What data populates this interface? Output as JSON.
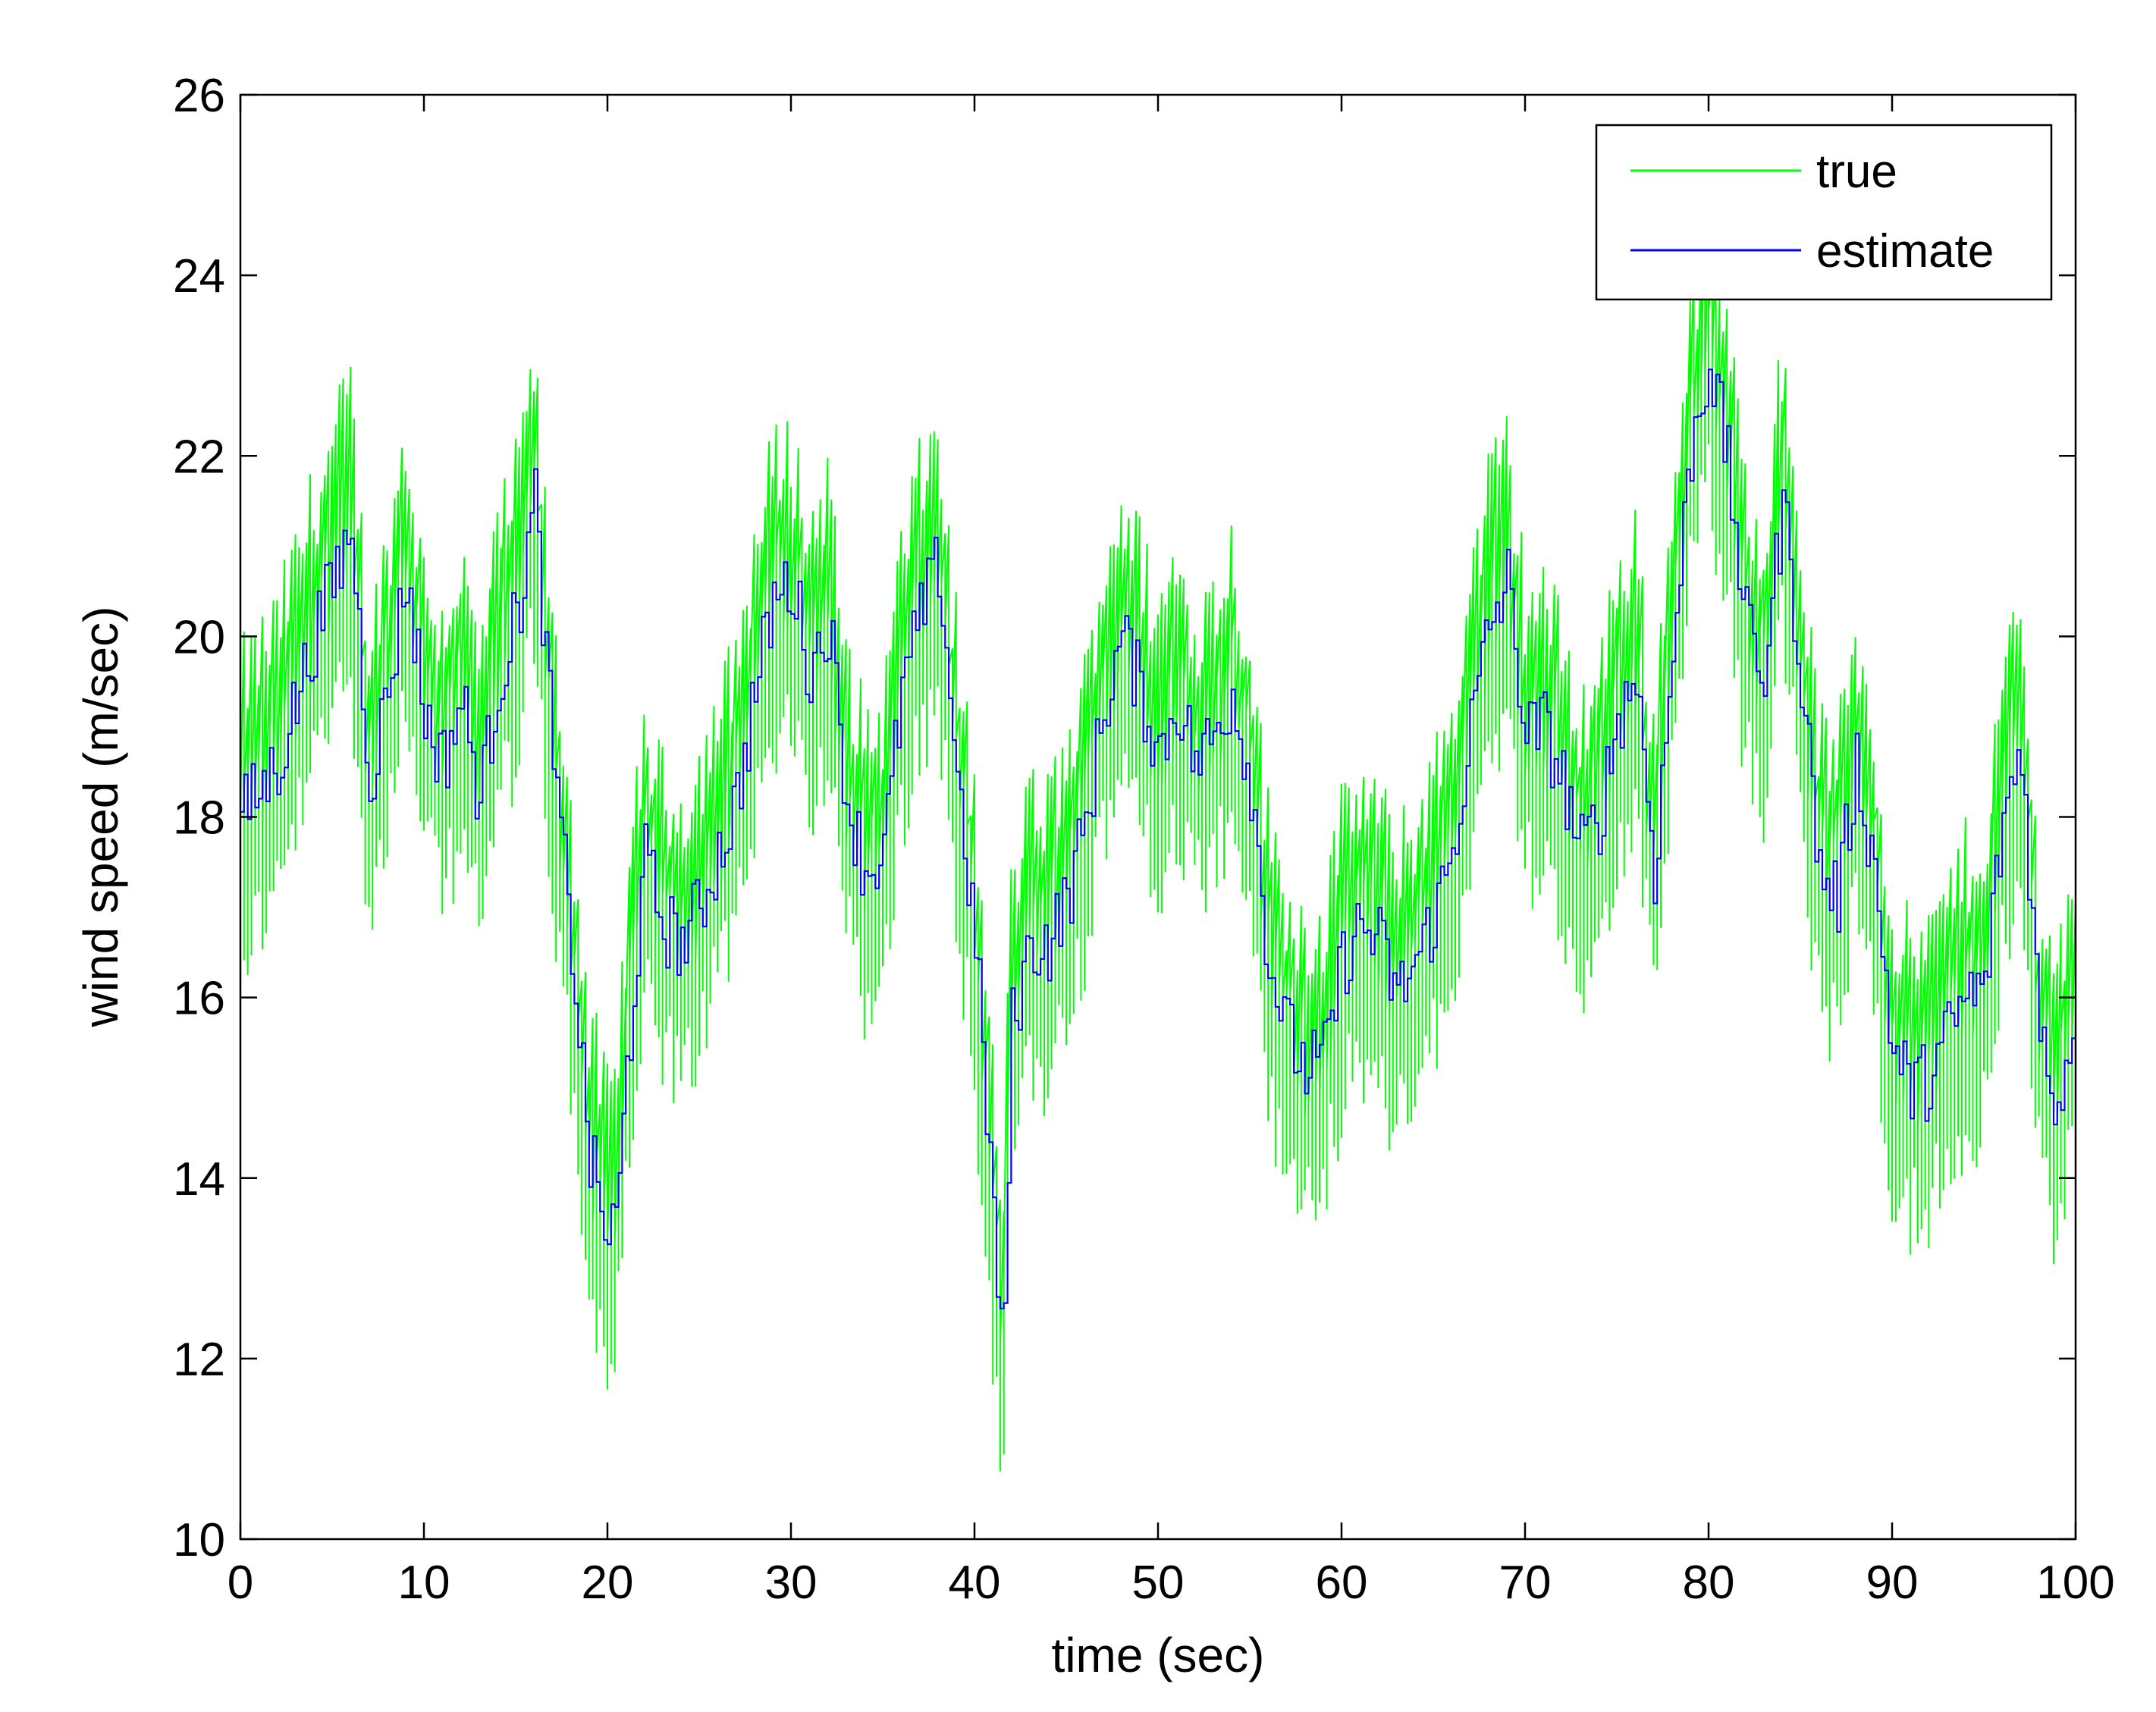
{
  "chart_data": {
    "type": "line",
    "xlabel": "time (sec)",
    "ylabel": "wind speed (m/sec)",
    "xlim": [
      0,
      100
    ],
    "ylim": [
      10,
      26
    ],
    "xticks": [
      "0",
      "10",
      "20",
      "30",
      "40",
      "50",
      "60",
      "70",
      "80",
      "90",
      "100"
    ],
    "yticks": [
      "10",
      "12",
      "14",
      "16",
      "18",
      "20",
      "22",
      "24",
      "26"
    ],
    "grid": false,
    "legend_position": "top-right",
    "series": [
      {
        "name": "true",
        "color": "#00ff00",
        "style": "noisy",
        "x": [
          0,
          2,
          4,
          6,
          7,
          8,
          9,
          10,
          11,
          12,
          13,
          14,
          15,
          16,
          17,
          18,
          19,
          20,
          20.5,
          21,
          22,
          23,
          24,
          25,
          26,
          27,
          28,
          29,
          30,
          31,
          32,
          33,
          34,
          35,
          36,
          37,
          38,
          39,
          40,
          41,
          41.5,
          42,
          43,
          44,
          45,
          46,
          47,
          48,
          49,
          50,
          51,
          52,
          53,
          54,
          55,
          56,
          57,
          58,
          59,
          60,
          61,
          62,
          63,
          64,
          65,
          66,
          67,
          68,
          69,
          70,
          71,
          72,
          73,
          74,
          75,
          76,
          77,
          78,
          79,
          80,
          81,
          82,
          83,
          84,
          85,
          86,
          87,
          88,
          89,
          90,
          91,
          92,
          93,
          94,
          95,
          96,
          97,
          98,
          99,
          100
        ],
        "values": [
          18.0,
          18.6,
          20.0,
          21.2,
          18.4,
          19.4,
          20.7,
          19.1,
          18.6,
          19.3,
          18.2,
          19.5,
          20.2,
          21.5,
          18.6,
          16.6,
          14.2,
          13.3,
          13.6,
          15.2,
          17.5,
          16.8,
          16.6,
          17.0,
          17.6,
          18.2,
          19.4,
          20.4,
          20.6,
          19.6,
          20.2,
          18.2,
          17.4,
          17.6,
          19.4,
          20.2,
          20.8,
          18.5,
          16.6,
          13.6,
          11.8,
          15.7,
          16.6,
          16.6,
          17.1,
          17.9,
          19.2,
          20.0,
          19.4,
          18.7,
          19.3,
          18.6,
          18.9,
          19.4,
          18.4,
          16.4,
          15.6,
          15.2,
          15.3,
          16.4,
          16.8,
          16.6,
          16.0,
          16.4,
          16.9,
          17.6,
          19.0,
          20.1,
          20.6,
          18.9,
          19.0,
          18.4,
          17.6,
          18.0,
          19.1,
          19.6,
          17.4,
          19.8,
          22.1,
          23.1,
          21.9,
          20.1,
          19.6,
          21.5,
          19.6,
          17.4,
          17.1,
          18.6,
          17.4,
          15.4,
          15.0,
          15.1,
          15.6,
          16.0,
          16.1,
          18.0,
          18.8,
          15.6,
          14.8,
          16.0
        ]
      },
      {
        "name": "estimate",
        "color": "#0000ff",
        "style": "stairs",
        "x": [
          0,
          2,
          4,
          6,
          7,
          8,
          9,
          10,
          11,
          12,
          13,
          14,
          15,
          16,
          17,
          18,
          19,
          20,
          20.5,
          21,
          22,
          23,
          24,
          25,
          26,
          27,
          28,
          29,
          30,
          31,
          32,
          33,
          34,
          35,
          36,
          37,
          38,
          39,
          40,
          41,
          41.5,
          42,
          43,
          44,
          45,
          46,
          47,
          48,
          49,
          50,
          51,
          52,
          53,
          54,
          55,
          56,
          57,
          58,
          59,
          60,
          61,
          62,
          63,
          64,
          65,
          66,
          67,
          68,
          69,
          70,
          71,
          72,
          73,
          74,
          75,
          76,
          77,
          78,
          79,
          80,
          81,
          82,
          83,
          84,
          85,
          86,
          87,
          88,
          89,
          90,
          91,
          92,
          93,
          94,
          95,
          96,
          97,
          98,
          99,
          100
        ],
        "values": [
          18.0,
          18.6,
          20.0,
          21.2,
          18.4,
          19.4,
          20.7,
          19.1,
          18.6,
          19.3,
          18.2,
          19.5,
          20.2,
          21.5,
          18.6,
          16.6,
          14.2,
          13.3,
          13.6,
          15.2,
          17.5,
          16.8,
          16.6,
          17.0,
          17.6,
          18.2,
          19.4,
          20.4,
          20.6,
          19.6,
          20.2,
          18.2,
          17.4,
          17.6,
          19.4,
          20.2,
          20.8,
          18.5,
          16.6,
          13.6,
          11.8,
          15.7,
          16.6,
          16.6,
          17.1,
          17.9,
          19.2,
          20.0,
          19.4,
          18.7,
          19.3,
          18.6,
          18.9,
          19.4,
          18.4,
          16.4,
          15.6,
          15.2,
          15.3,
          16.4,
          16.8,
          16.6,
          16.0,
          16.4,
          16.9,
          17.6,
          19.0,
          20.1,
          20.6,
          18.9,
          19.0,
          18.4,
          17.6,
          18.0,
          19.1,
          19.6,
          17.4,
          19.8,
          22.1,
          23.1,
          21.9,
          20.1,
          19.6,
          21.5,
          19.6,
          17.4,
          17.1,
          18.6,
          17.4,
          15.4,
          15.0,
          15.1,
          15.6,
          16.0,
          16.1,
          18.0,
          18.8,
          15.6,
          14.8,
          16.0
        ]
      }
    ]
  }
}
